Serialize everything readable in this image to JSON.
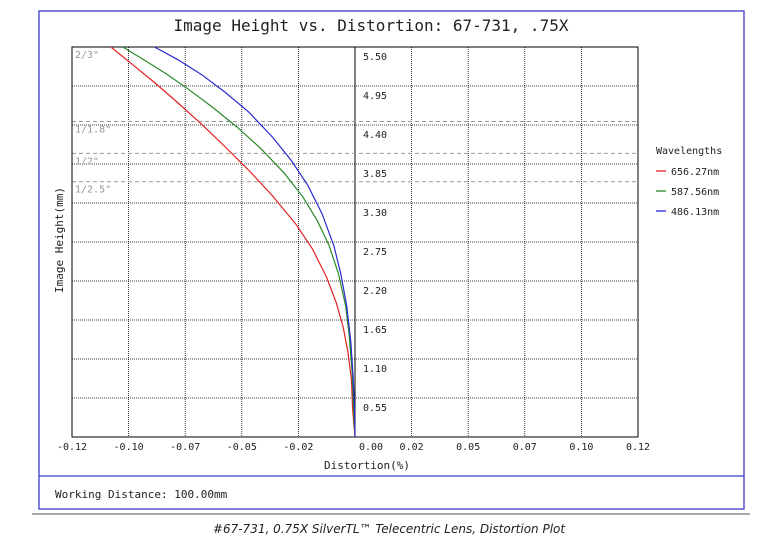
{
  "title": "Image Height vs. Distortion: 67-731, .75X",
  "footer_text": "Working Distance: 100.00mm",
  "caption": "#67-731, 0.75X SilverTL™ Telecentric Lens, Distortion Plot",
  "frame_color": "#3b3bc6",
  "chart_data": {
    "type": "line",
    "title": "Image Height vs. Distortion: 67-731, .75X",
    "xlabel": "Distortion(%)",
    "ylabel": "Image Height(mm)",
    "xlim": [
      -0.12,
      0.12
    ],
    "ylim": [
      0,
      5.5
    ],
    "grid": true,
    "x_ticks": [
      "-0.12",
      "-0.10",
      "-0.07",
      "-0.05",
      "-0.02",
      "0.00",
      "0.02",
      "0.05",
      "0.07",
      "0.10",
      "0.12"
    ],
    "y_ticks": [
      "0.55",
      "1.10",
      "1.65",
      "2.20",
      "2.75",
      "3.30",
      "3.85",
      "4.40",
      "4.95",
      "5.50"
    ],
    "sensor_markers": [
      {
        "label": "2/3\"",
        "y": 5.5
      },
      {
        "label": "1/1.8\"",
        "y": 4.45
      },
      {
        "label": "1/2\"",
        "y": 4.0
      },
      {
        "label": "1/2.5\"",
        "y": 3.6
      }
    ],
    "legend": {
      "title": "Wavelengths",
      "position": "right"
    },
    "series": [
      {
        "name": "656.27nm",
        "color": "#e02020",
        "x": [
          -0.1035,
          -0.095,
          -0.085,
          -0.075,
          -0.065,
          -0.055,
          -0.045,
          -0.035,
          -0.025,
          -0.018,
          -0.012,
          -0.008,
          -0.005,
          -0.003,
          -0.0015,
          -0.001
        ],
        "y": [
          5.5,
          5.27,
          5.0,
          4.71,
          4.41,
          4.09,
          3.76,
          3.4,
          3.0,
          2.65,
          2.25,
          1.9,
          1.55,
          1.2,
          0.8,
          0.4
        ]
      },
      {
        "name": "587.56nm",
        "color": "#2a8a2a",
        "x": [
          -0.0985,
          -0.09,
          -0.08,
          -0.07,
          -0.06,
          -0.05,
          -0.04,
          -0.03,
          -0.022,
          -0.016,
          -0.011,
          -0.007,
          -0.004,
          -0.0025,
          -0.0012,
          -0.0006
        ],
        "y": [
          5.5,
          5.33,
          5.12,
          4.89,
          4.64,
          4.37,
          4.07,
          3.72,
          3.38,
          3.05,
          2.7,
          2.3,
          1.85,
          1.45,
          0.9,
          0.4
        ]
      },
      {
        "name": "486.13nm",
        "color": "#2a2ad0",
        "x": [
          -0.085,
          -0.075,
          -0.065,
          -0.055,
          -0.045,
          -0.035,
          -0.027,
          -0.02,
          -0.014,
          -0.009,
          -0.006,
          -0.0035,
          -0.0018,
          -0.0008,
          -0.0002
        ],
        "y": [
          5.5,
          5.32,
          5.11,
          4.86,
          4.58,
          4.23,
          3.9,
          3.55,
          3.15,
          2.7,
          2.3,
          1.85,
          1.35,
          0.85,
          0.4
        ]
      }
    ]
  }
}
